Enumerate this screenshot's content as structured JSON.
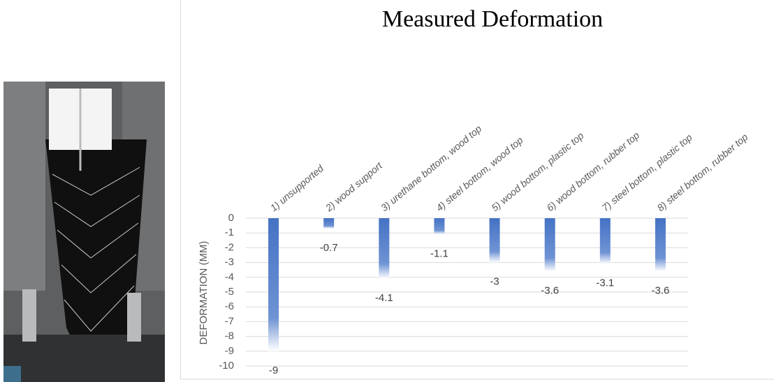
{
  "chart_data": {
    "type": "bar",
    "title": "Measured Deformation",
    "y_label": "DEFORMATION (MM)",
    "categories": [
      "1) unsupported",
      "2) wood support",
      "3) urethane bottom, wood top",
      "4) steel bottom, wood top",
      "5) wood bottom, plastic top",
      "6) wood bottom, rubber top",
      "7) steel bottom, plastic top",
      "8) steel bottom, rubber top"
    ],
    "values": [
      -9,
      -0.7,
      -4.1,
      -1.1,
      -3,
      -3.6,
      -3.1,
      -3.6
    ],
    "color": "#4472c4",
    "ylim": [
      -10,
      0
    ],
    "yticks": [
      0,
      -1,
      -2,
      -3,
      -4,
      -5,
      -6,
      -7,
      -8,
      -9,
      -10
    ],
    "grid": true
  }
}
